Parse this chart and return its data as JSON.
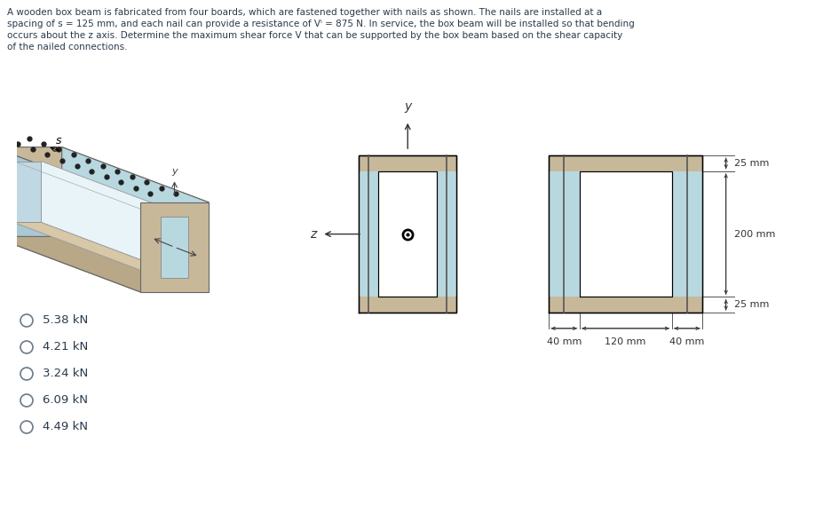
{
  "problem_text_lines": [
    "A wooden box beam is fabricated from four boards, which are fastened together with nails as shown. The nails are installed at a",
    "spacing of s = 125 mm, and each nail can provide a resistance of Vⁱ = 875 N. In service, the box beam will be installed so that bending",
    "occurs about the z axis. Determine the maximum shear force V that can be supported by the box beam based on the shear capacity",
    "of the nailed connections."
  ],
  "options": [
    "5.38 kN",
    "4.21 kN",
    "3.24 kN",
    "6.09 kN",
    "4.49 kN"
  ],
  "background_color": "#ffffff",
  "wood_top_color": "#c8b89a",
  "wood_side_color": "#b8a888",
  "web_color": "#b8d8e0",
  "web_side_color": "#a8c8d4",
  "inner_color": "#e8f4f8",
  "text_color": "#2a3a4a",
  "dim_color": "#333333"
}
